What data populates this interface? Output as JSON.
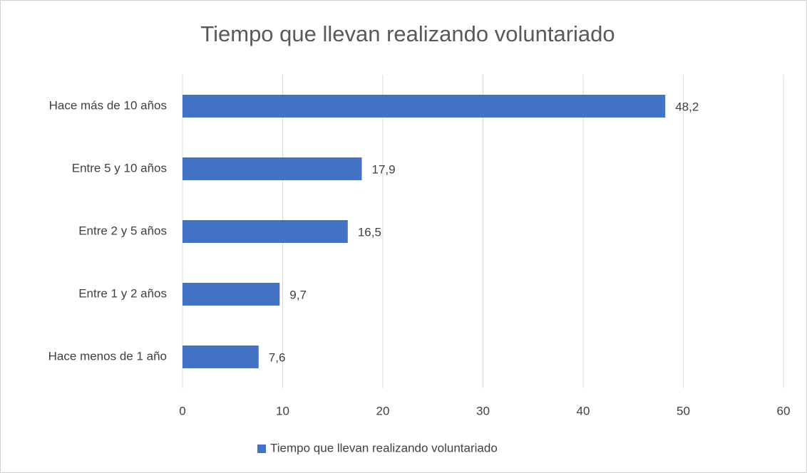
{
  "chart_data": {
    "type": "bar",
    "orientation": "horizontal",
    "title": "Tiempo que llevan realizando voluntariado",
    "categories": [
      "Hace más de 10 años",
      "Entre 5 y 10 años",
      "Entre 2 y 5 años",
      "Entre 1 y 2 años",
      "Hace menos de 1 año"
    ],
    "series": [
      {
        "name": "Tiempo que llevan realizando voluntariado",
        "color": "#4472c4",
        "values": [
          48.2,
          17.9,
          16.5,
          9.7,
          7.6
        ],
        "value_labels": [
          "48,2",
          "17,9",
          "16,5",
          "9,7",
          "7,6"
        ]
      }
    ],
    "xlim": [
      0,
      60
    ],
    "xticks": [
      0,
      10,
      20,
      30,
      40,
      50,
      60
    ],
    "grid": true,
    "legend": "bottom"
  }
}
